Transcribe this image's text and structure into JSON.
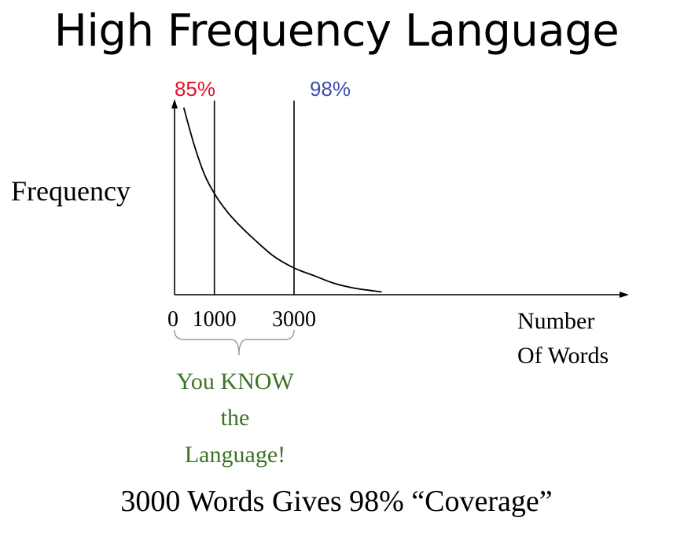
{
  "slide": {
    "title": "High Frequency Language",
    "caption": "3000 Words Gives 98% “Coverage”"
  },
  "chart_data": {
    "type": "line",
    "title": "",
    "ylabel": "Frequency",
    "xlabel": [
      "Number",
      "Of Words"
    ],
    "xlim": [
      0,
      5200
    ],
    "ylim": [
      0,
      1
    ],
    "grid": false,
    "x_ticks": [
      {
        "value": 0,
        "label": "0"
      },
      {
        "value": 1000,
        "label": "1000"
      },
      {
        "value": 3000,
        "label": "3000"
      }
    ],
    "series": [
      {
        "name": "",
        "color": "#000000",
        "x": [
          230,
          500,
          750,
          1000,
          1300,
          1600,
          2000,
          2500,
          3000,
          3500,
          4000,
          4500,
          5000,
          5200
        ],
        "y": [
          0.98,
          0.78,
          0.63,
          0.53,
          0.44,
          0.37,
          0.29,
          0.2,
          0.14,
          0.1,
          0.06,
          0.035,
          0.02,
          0.015
        ]
      }
    ],
    "markers": [
      {
        "x": 1000,
        "label": "85%",
        "color": "#e3122d"
      },
      {
        "x": 3000,
        "label": "98%",
        "color": "#3d4fa8"
      }
    ],
    "annotation": {
      "x_range": [
        0,
        3000
      ],
      "lines": [
        "You KNOW",
        "the",
        "Language!"
      ],
      "color": "#3e7326"
    }
  }
}
